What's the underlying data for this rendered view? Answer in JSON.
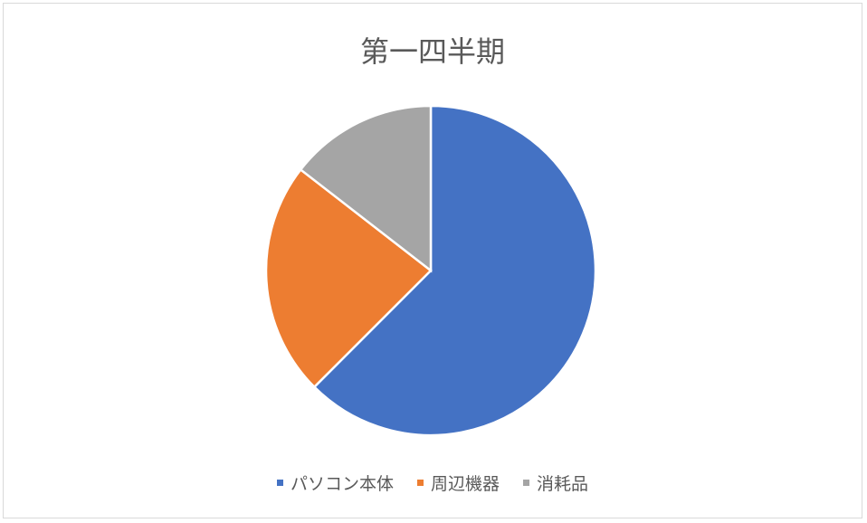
{
  "chart_data": {
    "type": "pie",
    "title": "第一四半期",
    "categories": [
      "パソコン本体",
      "周辺機器",
      "消耗品"
    ],
    "values": [
      62.5,
      23,
      14.5
    ],
    "colors": [
      "#4472c4",
      "#ed7d31",
      "#a5a5a5"
    ],
    "start_angle": "12 o'clock, clockwise",
    "legend_position": "bottom"
  }
}
